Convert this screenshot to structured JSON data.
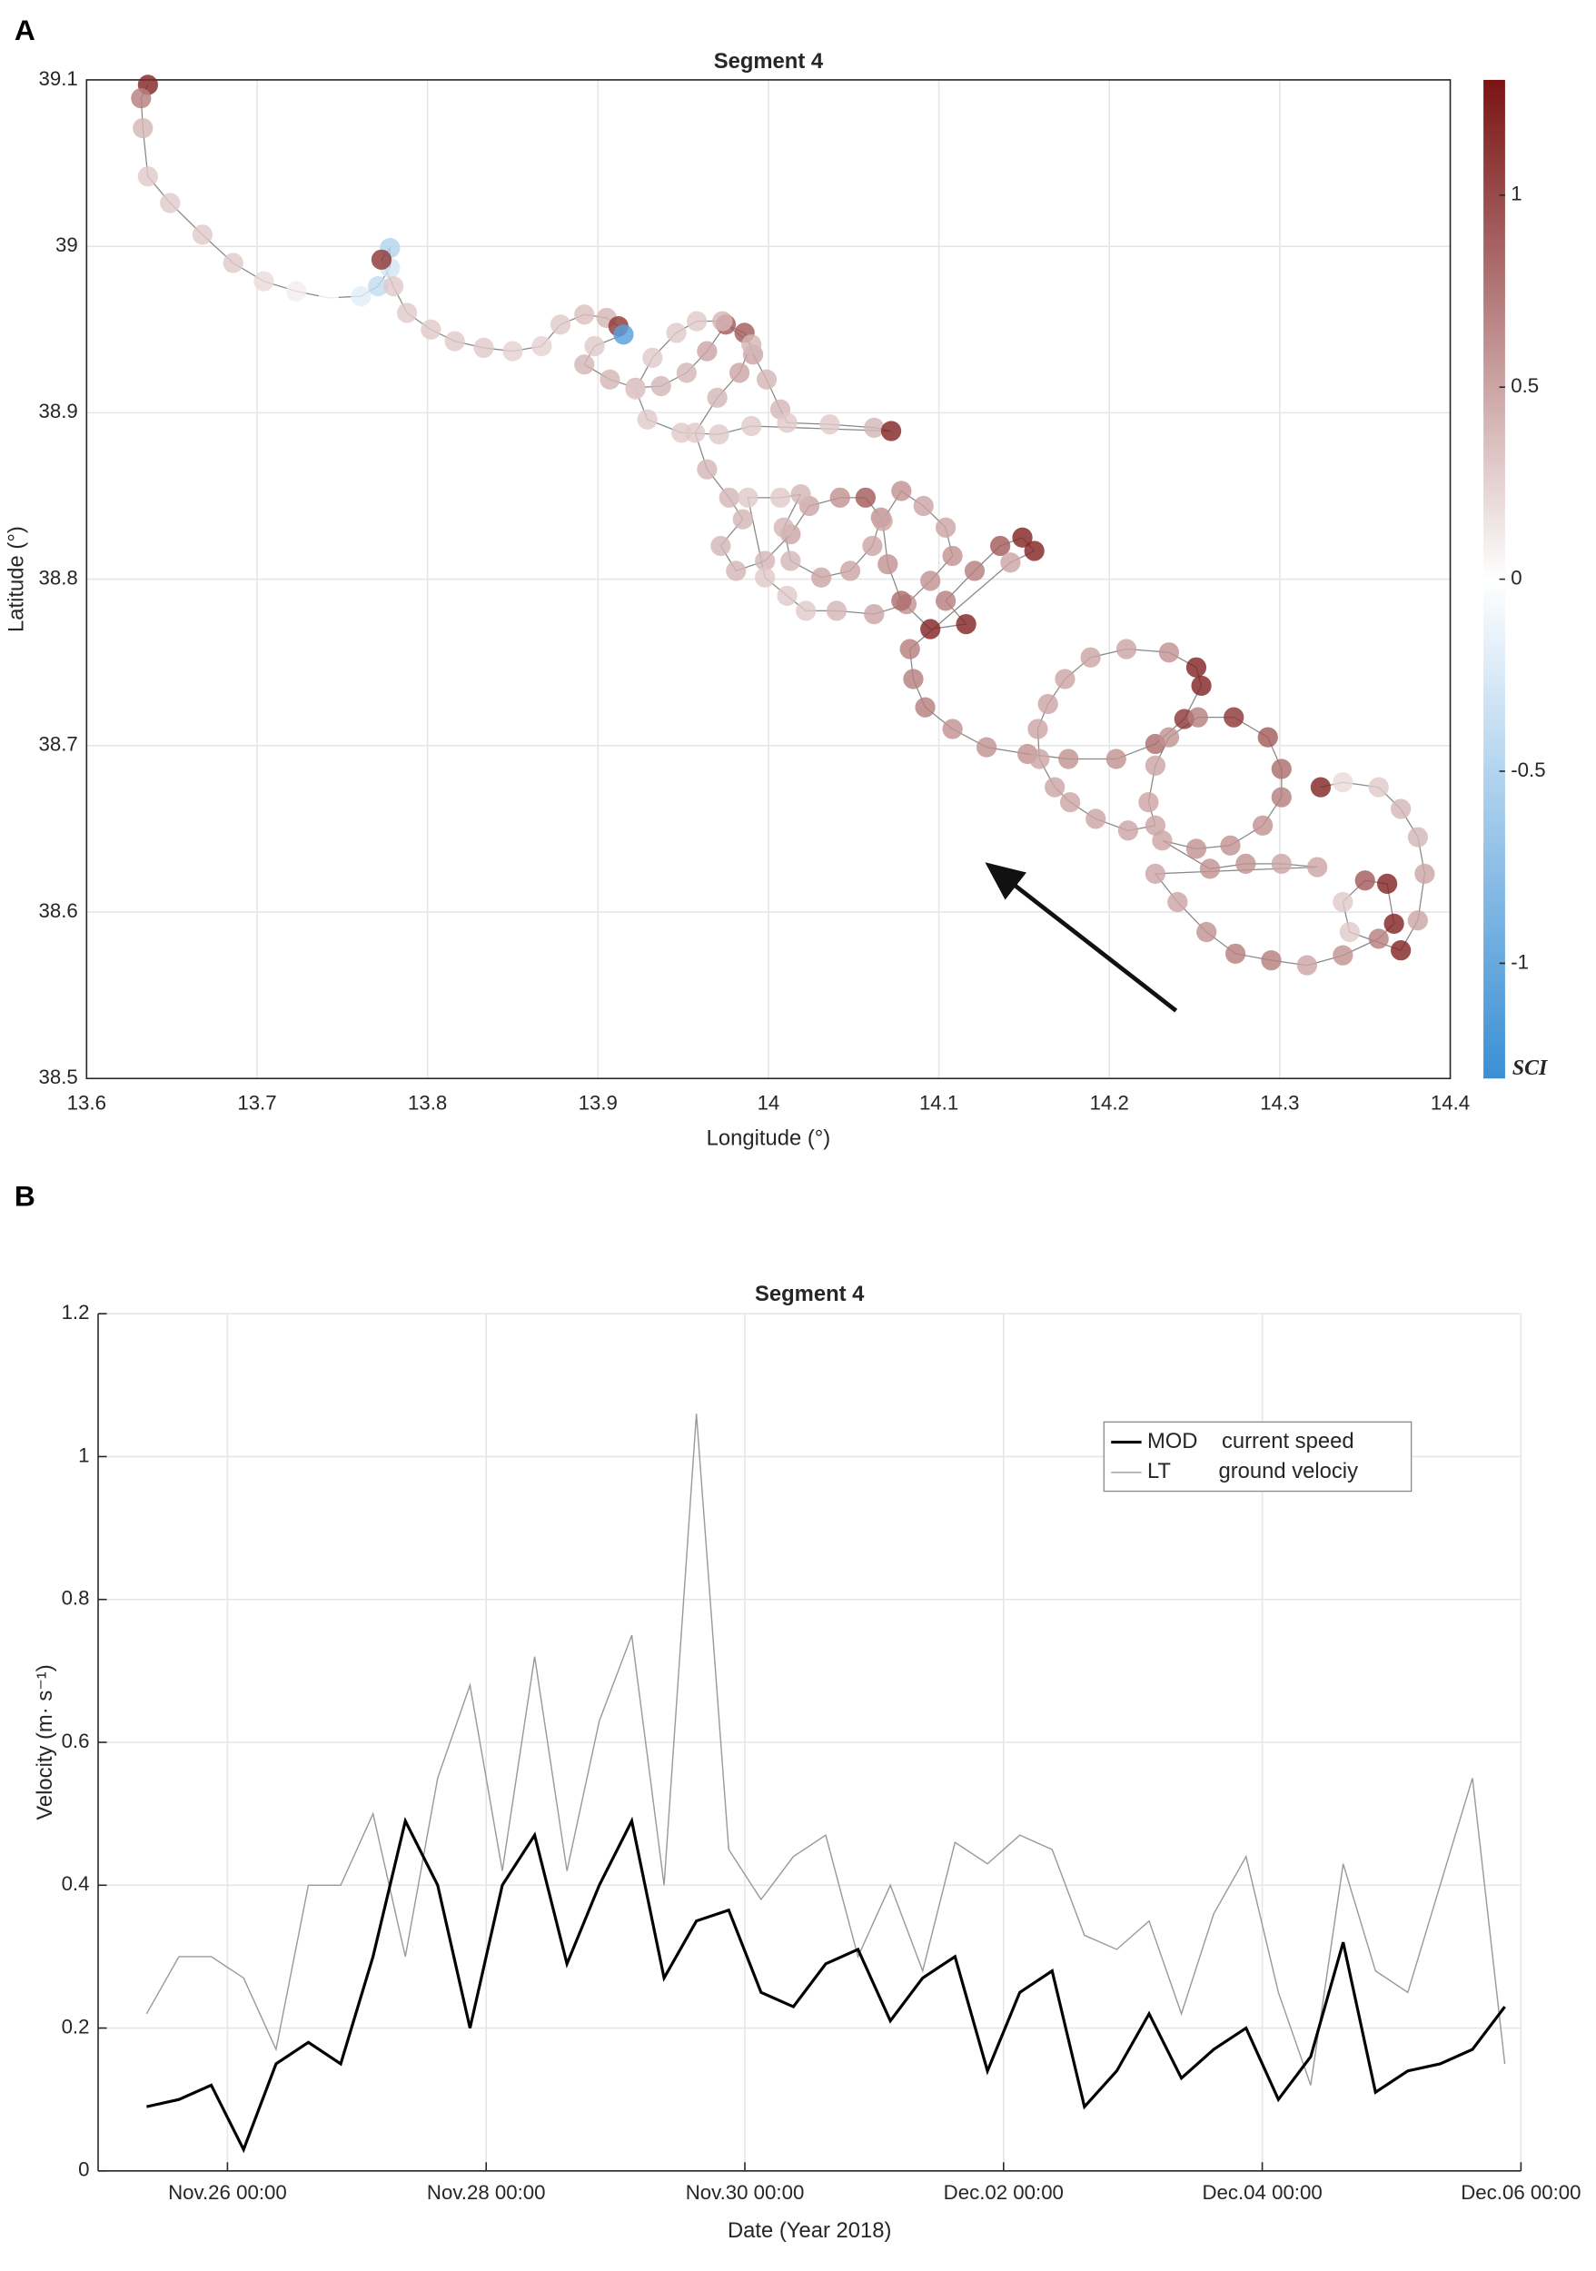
{
  "chart_data": [
    {
      "panel": "A",
      "type": "scatter",
      "title": "Segment 4",
      "x_label": "Longitude (°)",
      "y_label": "Latitude (°)",
      "xlim": [
        13.6,
        14.4
      ],
      "xticks": [
        13.6,
        13.7,
        13.8,
        13.9,
        14,
        14.1,
        14.2,
        14.3,
        14.4
      ],
      "ylim": [
        38.5,
        39.1
      ],
      "yticks": [
        38.5,
        38.6,
        38.7,
        38.8,
        38.9,
        39,
        39.1
      ],
      "grid": true,
      "colorbar_label": "SCI",
      "clim": [
        -1.3,
        1.3
      ],
      "cticks": [
        -1,
        -0.5,
        0,
        0.5,
        1
      ],
      "colormap": [
        "#3a8fd4",
        "#ffffff",
        "#7a1414"
      ],
      "line_color": "#888888",
      "x": [
        13.636,
        13.632,
        13.633,
        13.636,
        13.649,
        13.668,
        13.686,
        13.704,
        13.723,
        13.742,
        13.761,
        13.771,
        13.778,
        13.778,
        13.773,
        13.78,
        13.788,
        13.802,
        13.816,
        13.833,
        13.85,
        13.867,
        13.878,
        13.892,
        13.905,
        13.912,
        13.915,
        13.898,
        13.892,
        13.907,
        13.922,
        13.937,
        13.952,
        13.964,
        13.975,
        13.986,
        13.991,
        13.999,
        14.007,
        14.011,
        14.036,
        14.062,
        14.072,
        13.99,
        13.971,
        13.949,
        13.929,
        13.922,
        13.932,
        13.946,
        13.958,
        13.973,
        13.99,
        13.983,
        13.97,
        13.957,
        13.964,
        13.977,
        13.985,
        13.972,
        13.981,
        13.998,
        14.013,
        14.024,
        14.042,
        14.057,
        14.066,
        14.061,
        14.048,
        14.031,
        14.013,
        14.009,
        14.019,
        14.007,
        13.988,
        13.998,
        14.011,
        14.022,
        14.04,
        14.062,
        14.081,
        14.095,
        14.108,
        14.104,
        14.091,
        14.078,
        14.067,
        14.07,
        14.078,
        14.095,
        14.116,
        14.104,
        14.121,
        14.136,
        14.149,
        14.156,
        14.142,
        14.083,
        14.085,
        14.092,
        14.108,
        14.128,
        14.152,
        14.176,
        14.204,
        14.227,
        14.244,
        14.254,
        14.251,
        14.235,
        14.21,
        14.189,
        14.174,
        14.164,
        14.158,
        14.159,
        14.168,
        14.177,
        14.192,
        14.211,
        14.227,
        14.223,
        14.227,
        14.235,
        14.252,
        14.273,
        14.293,
        14.301,
        14.301,
        14.29,
        14.271,
        14.251,
        14.231,
        14.259,
        14.28,
        14.301,
        14.322,
        14.227,
        14.24,
        14.257,
        14.274,
        14.295,
        14.316,
        14.337,
        14.358,
        14.367,
        14.363,
        14.35,
        14.337,
        14.341,
        14.371,
        14.381,
        14.385,
        14.381,
        14.371,
        14.358,
        14.337,
        14.324
      ],
      "y": [
        39.097,
        39.089,
        39.071,
        39.042,
        39.026,
        39.007,
        38.99,
        38.979,
        38.973,
        38.969,
        38.97,
        38.976,
        38.987,
        38.999,
        38.992,
        38.976,
        38.96,
        38.95,
        38.943,
        38.939,
        38.937,
        38.94,
        38.953,
        38.959,
        38.957,
        38.952,
        38.947,
        38.94,
        38.929,
        38.92,
        38.915,
        38.916,
        38.924,
        38.937,
        38.953,
        38.948,
        38.935,
        38.92,
        38.902,
        38.894,
        38.893,
        38.891,
        38.889,
        38.892,
        38.887,
        38.888,
        38.896,
        38.914,
        38.933,
        38.948,
        38.955,
        38.955,
        38.941,
        38.924,
        38.909,
        38.888,
        38.866,
        38.849,
        38.836,
        38.82,
        38.805,
        38.811,
        38.827,
        38.844,
        38.849,
        38.849,
        38.837,
        38.82,
        38.805,
        38.801,
        38.811,
        38.831,
        38.851,
        38.849,
        38.849,
        38.801,
        38.79,
        38.781,
        38.781,
        38.779,
        38.785,
        38.799,
        38.814,
        38.831,
        38.844,
        38.853,
        38.835,
        38.809,
        38.787,
        38.77,
        38.773,
        38.787,
        38.805,
        38.82,
        38.825,
        38.817,
        38.81,
        38.758,
        38.74,
        38.723,
        38.71,
        38.699,
        38.695,
        38.692,
        38.692,
        38.701,
        38.716,
        38.736,
        38.747,
        38.756,
        38.758,
        38.753,
        38.74,
        38.725,
        38.71,
        38.692,
        38.675,
        38.666,
        38.656,
        38.649,
        38.652,
        38.666,
        38.688,
        38.705,
        38.717,
        38.717,
        38.705,
        38.686,
        38.669,
        38.652,
        38.64,
        38.638,
        38.643,
        38.626,
        38.629,
        38.629,
        38.627,
        38.623,
        38.606,
        38.588,
        38.575,
        38.571,
        38.568,
        38.574,
        38.584,
        38.593,
        38.617,
        38.619,
        38.606,
        38.588,
        38.577,
        38.595,
        38.623,
        38.645,
        38.662,
        38.675,
        38.678,
        38.675
      ],
      "values": [
        1.2,
        0.7,
        0.4,
        0.3,
        0.3,
        0.3,
        0.3,
        0.2,
        0.1,
        0,
        -0.2,
        -0.4,
        -0.3,
        -0.5,
        1.1,
        0.3,
        0.3,
        0.3,
        0.3,
        0.3,
        0.25,
        0.25,
        0.3,
        0.35,
        0.4,
        1.1,
        -1.1,
        0.3,
        0.4,
        0.4,
        0.4,
        0.4,
        0.4,
        0.5,
        0.9,
        0.9,
        0.5,
        0.4,
        0.4,
        0.3,
        0.3,
        0.4,
        1.2,
        0.3,
        0.3,
        0.3,
        0.3,
        0.3,
        0.3,
        0.3,
        0.3,
        0.4,
        0.4,
        0.5,
        0.4,
        0.3,
        0.4,
        0.4,
        0.4,
        0.4,
        0.4,
        0.4,
        0.5,
        0.5,
        0.6,
        0.9,
        0.6,
        0.5,
        0.5,
        0.5,
        0.4,
        0.4,
        0.4,
        0.3,
        0.3,
        0.3,
        0.3,
        0.3,
        0.4,
        0.5,
        0.6,
        0.6,
        0.6,
        0.5,
        0.5,
        0.6,
        0.5,
        0.6,
        0.8,
        1.2,
        1.2,
        0.7,
        0.7,
        0.9,
        1.2,
        1.2,
        0.5,
        0.7,
        0.7,
        0.7,
        0.6,
        0.6,
        0.6,
        0.6,
        0.6,
        0.8,
        1.1,
        1.2,
        1.2,
        0.6,
        0.5,
        0.5,
        0.5,
        0.5,
        0.5,
        0.5,
        0.5,
        0.5,
        0.5,
        0.5,
        0.5,
        0.5,
        0.5,
        0.6,
        0.7,
        1.1,
        0.9,
        0.8,
        0.7,
        0.6,
        0.6,
        0.6,
        0.5,
        0.6,
        0.6,
        0.5,
        0.5,
        0.5,
        0.5,
        0.6,
        0.7,
        0.7,
        0.5,
        0.6,
        0.7,
        1.2,
        1.2,
        0.9,
        0.3,
        0.3,
        1.2,
        0.5,
        0.5,
        0.4,
        0.4,
        0.3,
        0.2,
        1.2
      ]
    },
    {
      "panel": "B",
      "type": "line",
      "title": "Segment 4",
      "x_label": "Date (Year 2018)",
      "y_label": "Velocity (m· s⁻¹)",
      "xlim": [
        "2018-11-25T00:00",
        "2018-12-06T00:00"
      ],
      "xticks": [
        {
          "value": "2018-11-26T00:00",
          "label": "Nov.26 00:00"
        },
        {
          "value": "2018-11-28T00:00",
          "label": "Nov.28 00:00"
        },
        {
          "value": "2018-11-30T00:00",
          "label": "Nov.30 00:00"
        },
        {
          "value": "2018-12-02T00:00",
          "label": "Dec.02 00:00"
        },
        {
          "value": "2018-12-04T00:00",
          "label": "Dec.04 00:00"
        },
        {
          "value": "2018-12-06T00:00",
          "label": "Dec.06 00:00"
        }
      ],
      "ylim": [
        0,
        1.2
      ],
      "yticks": [
        0,
        0.2,
        0.4,
        0.6,
        0.8,
        1,
        1.2
      ],
      "grid": true,
      "legend": "upper right",
      "x": [
        "2018-11-25T09:00",
        "2018-11-25T15:00",
        "2018-11-25T21:00",
        "2018-11-26T03:00",
        "2018-11-26T09:00",
        "2018-11-26T15:00",
        "2018-11-26T21:00",
        "2018-11-27T03:00",
        "2018-11-27T09:00",
        "2018-11-27T15:00",
        "2018-11-27T21:00",
        "2018-11-28T03:00",
        "2018-11-28T09:00",
        "2018-11-28T15:00",
        "2018-11-28T21:00",
        "2018-11-29T03:00",
        "2018-11-29T09:00",
        "2018-11-29T15:00",
        "2018-11-29T21:00",
        "2018-11-30T03:00",
        "2018-11-30T09:00",
        "2018-11-30T15:00",
        "2018-11-30T21:00",
        "2018-12-01T03:00",
        "2018-12-01T09:00",
        "2018-12-01T15:00",
        "2018-12-01T21:00",
        "2018-12-02T03:00",
        "2018-12-02T09:00",
        "2018-12-02T15:00",
        "2018-12-02T21:00",
        "2018-12-03T03:00",
        "2018-12-03T09:00",
        "2018-12-03T15:00",
        "2018-12-03T21:00",
        "2018-12-04T03:00",
        "2018-12-04T09:00",
        "2018-12-04T15:00",
        "2018-12-04T21:00",
        "2018-12-05T03:00",
        "2018-12-05T09:00",
        "2018-12-05T15:00",
        "2018-12-05T21:00"
      ],
      "series": [
        {
          "name": "MOD    current speed",
          "color": "#000000",
          "values": [
            0.09,
            0.1,
            0.12,
            0.03,
            0.15,
            0.18,
            0.15,
            0.3,
            0.49,
            0.4,
            0.2,
            0.4,
            0.47,
            0.29,
            0.4,
            0.49,
            0.27,
            0.35,
            0.365,
            0.25,
            0.23,
            0.29,
            0.31,
            0.21,
            0.27,
            0.3,
            0.14,
            0.25,
            0.28,
            0.09,
            0.14,
            0.22,
            0.13,
            0.17,
            0.2,
            0.1,
            0.16,
            0.32,
            0.11,
            0.14,
            0.15,
            0.17,
            0.23
          ]
        },
        {
          "name": "LT        ground velociy",
          "color": "#9a9a9a",
          "values": [
            0.22,
            0.3,
            0.3,
            0.27,
            0.17,
            0.4,
            0.4,
            0.5,
            0.3,
            0.55,
            0.68,
            0.42,
            0.72,
            0.42,
            0.63,
            0.75,
            0.4,
            1.06,
            0.45,
            0.38,
            0.44,
            0.47,
            0.3,
            0.4,
            0.28,
            0.46,
            0.43,
            0.47,
            0.45,
            0.33,
            0.31,
            0.35,
            0.22,
            0.36,
            0.44,
            0.25,
            0.12,
            0.43,
            0.28,
            0.25,
            0.4,
            0.55,
            0.15
          ]
        }
      ]
    }
  ]
}
